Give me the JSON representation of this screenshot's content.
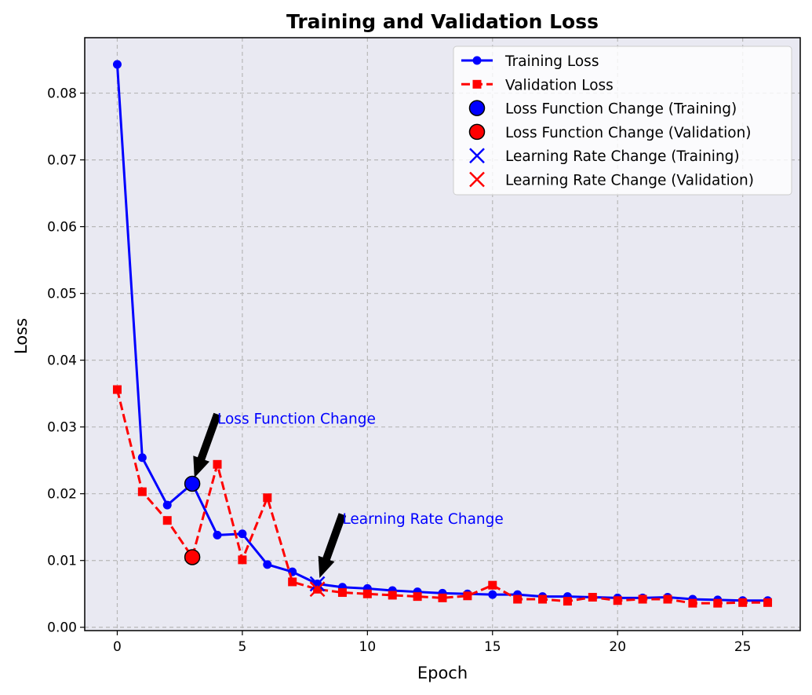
{
  "chart_data": {
    "type": "line",
    "title": "Training and Validation Loss",
    "xlabel": "Epoch",
    "ylabel": "Loss",
    "xlim": [
      -1.3,
      27.3
    ],
    "ylim": [
      -0.0005,
      0.0883
    ],
    "grid": true,
    "x_ticks": [
      0,
      5,
      10,
      15,
      20,
      25
    ],
    "x_tick_labels": [
      "0",
      "5",
      "10",
      "15",
      "20",
      "25"
    ],
    "y_ticks": [
      0.0,
      0.01,
      0.02,
      0.03,
      0.04,
      0.05,
      0.06,
      0.07,
      0.08
    ],
    "y_tick_labels": [
      "0.00",
      "0.01",
      "0.02",
      "0.03",
      "0.04",
      "0.05",
      "0.06",
      "0.07",
      "0.08"
    ],
    "x": [
      0,
      1,
      2,
      3,
      4,
      5,
      6,
      7,
      8,
      9,
      10,
      11,
      12,
      13,
      14,
      15,
      16,
      17,
      18,
      19,
      20,
      21,
      22,
      23,
      24,
      25,
      26
    ],
    "series": [
      {
        "name": "Training Loss",
        "color": "#0000ff",
        "line_style": "solid",
        "marker": "circle",
        "values": [
          0.0843,
          0.0254,
          0.0183,
          0.0215,
          0.0138,
          0.014,
          0.0094,
          0.0083,
          0.0065,
          0.006,
          0.0058,
          0.0055,
          0.0053,
          0.0051,
          0.005,
          0.0049,
          0.0049,
          0.0046,
          0.0046,
          0.0045,
          0.0044,
          0.0044,
          0.0045,
          0.0042,
          0.0041,
          0.004,
          0.004
        ]
      },
      {
        "name": "Validation Loss",
        "color": "#ff0000",
        "line_style": "dashed",
        "marker": "square",
        "values": [
          0.0356,
          0.0203,
          0.016,
          0.0105,
          0.0244,
          0.0101,
          0.0194,
          0.0068,
          0.0057,
          0.0052,
          0.005,
          0.0048,
          0.0046,
          0.0044,
          0.0047,
          0.0063,
          0.0042,
          0.0042,
          0.0039,
          0.0045,
          0.004,
          0.0042,
          0.0042,
          0.0036,
          0.0036,
          0.0037,
          0.0037
        ]
      }
    ],
    "special_markers": [
      {
        "name": "Loss Function Change (Training)",
        "type": "big-circle",
        "color": "#0000ff",
        "x": 3,
        "y": 0.0215
      },
      {
        "name": "Loss Function Change (Validation)",
        "type": "big-circle",
        "color": "#ff0000",
        "x": 3,
        "y": 0.0105
      },
      {
        "name": "Learning Rate Change (Training)",
        "type": "x",
        "color": "#0000ff",
        "x": 8,
        "y": 0.0065
      },
      {
        "name": "Learning Rate Change (Validation)",
        "type": "x",
        "color": "#ff0000",
        "x": 8,
        "y": 0.0057
      }
    ],
    "annotations": [
      {
        "text": "Loss Function Change",
        "text_x": 4.0,
        "text_y": 0.0305,
        "point_x": 3,
        "point_y": 0.0215,
        "color": "#0000ff"
      },
      {
        "text": "Learning Rate Change",
        "text_x": 9.0,
        "text_y": 0.0155,
        "point_x": 8,
        "point_y": 0.0065,
        "color": "#0000ff"
      }
    ],
    "legend": {
      "location": "top-right",
      "entries": [
        {
          "label": "Training Loss",
          "symbol": "line-circle",
          "color": "#0000ff"
        },
        {
          "label": "Validation Loss",
          "symbol": "dashed-square",
          "color": "#ff0000"
        },
        {
          "label": "Loss Function Change (Training)",
          "symbol": "big-circle",
          "color": "#0000ff"
        },
        {
          "label": "Loss Function Change (Validation)",
          "symbol": "big-circle",
          "color": "#ff0000"
        },
        {
          "label": "Learning Rate Change (Training)",
          "symbol": "x",
          "color": "#0000ff"
        },
        {
          "label": "Learning Rate Change (Validation)",
          "symbol": "x",
          "color": "#ff0000"
        }
      ]
    },
    "plot_background": "#e9e9f2"
  }
}
